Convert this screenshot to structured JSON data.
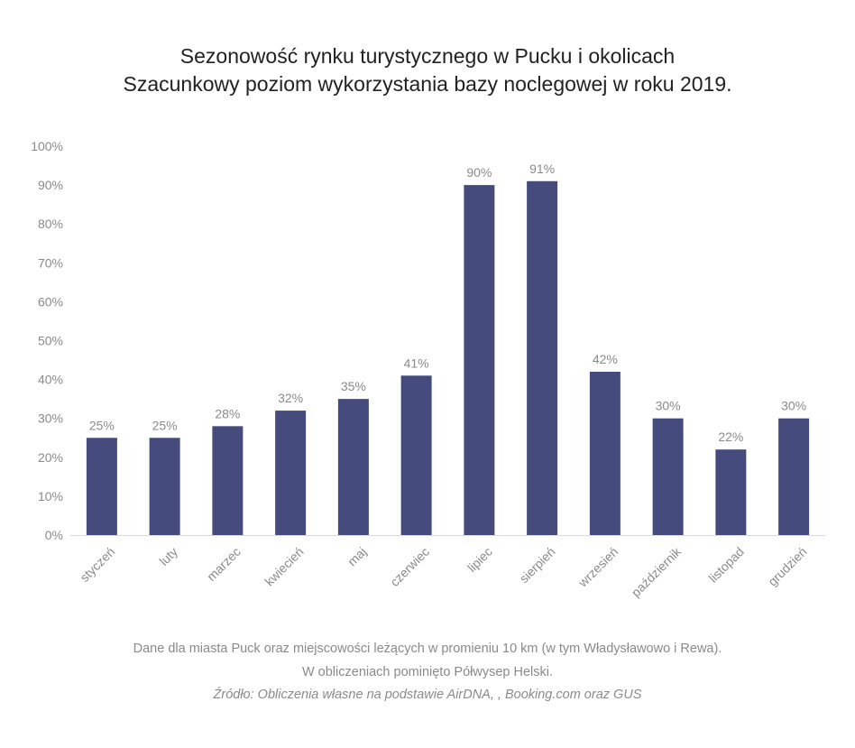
{
  "chart_data": {
    "type": "bar",
    "title": "Sezonowość rynku turystycznego w Pucku i okolicach",
    "subtitle": "Szacunkowy poziom wykorzystania bazy noclegowej w roku 2019.",
    "categories": [
      "styczeń",
      "luty",
      "marzec",
      "kwiecień",
      "maj",
      "czerwiec",
      "lipiec",
      "sierpień",
      "wrzesień",
      "październik",
      "listopad",
      "grudzień"
    ],
    "values": [
      25,
      25,
      28,
      32,
      35,
      41,
      90,
      91,
      42,
      30,
      22,
      30
    ],
    "data_labels": [
      "25%",
      "25%",
      "28%",
      "32%",
      "35%",
      "41%",
      "90%",
      "91%",
      "42%",
      "30%",
      "22%",
      "30%"
    ],
    "yticks": [
      "0%",
      "10%",
      "20%",
      "30%",
      "40%",
      "50%",
      "60%",
      "70%",
      "80%",
      "90%",
      "100%"
    ],
    "ylim": [
      0,
      100
    ],
    "xlabel": "",
    "ylabel": "",
    "grid": false,
    "bar_color": "#454b7c"
  },
  "footnotes": {
    "line1": "Dane dla miasta Puck oraz miejscowości leżących w promieniu 10 km (w tym Władysławowo i Rewa).",
    "line2": "W obliczeniach pominięto Półwysep Helski.",
    "source": "Źródło: Obliczenia własne na podstawie AirDNA, , Booking.com oraz GUS"
  }
}
